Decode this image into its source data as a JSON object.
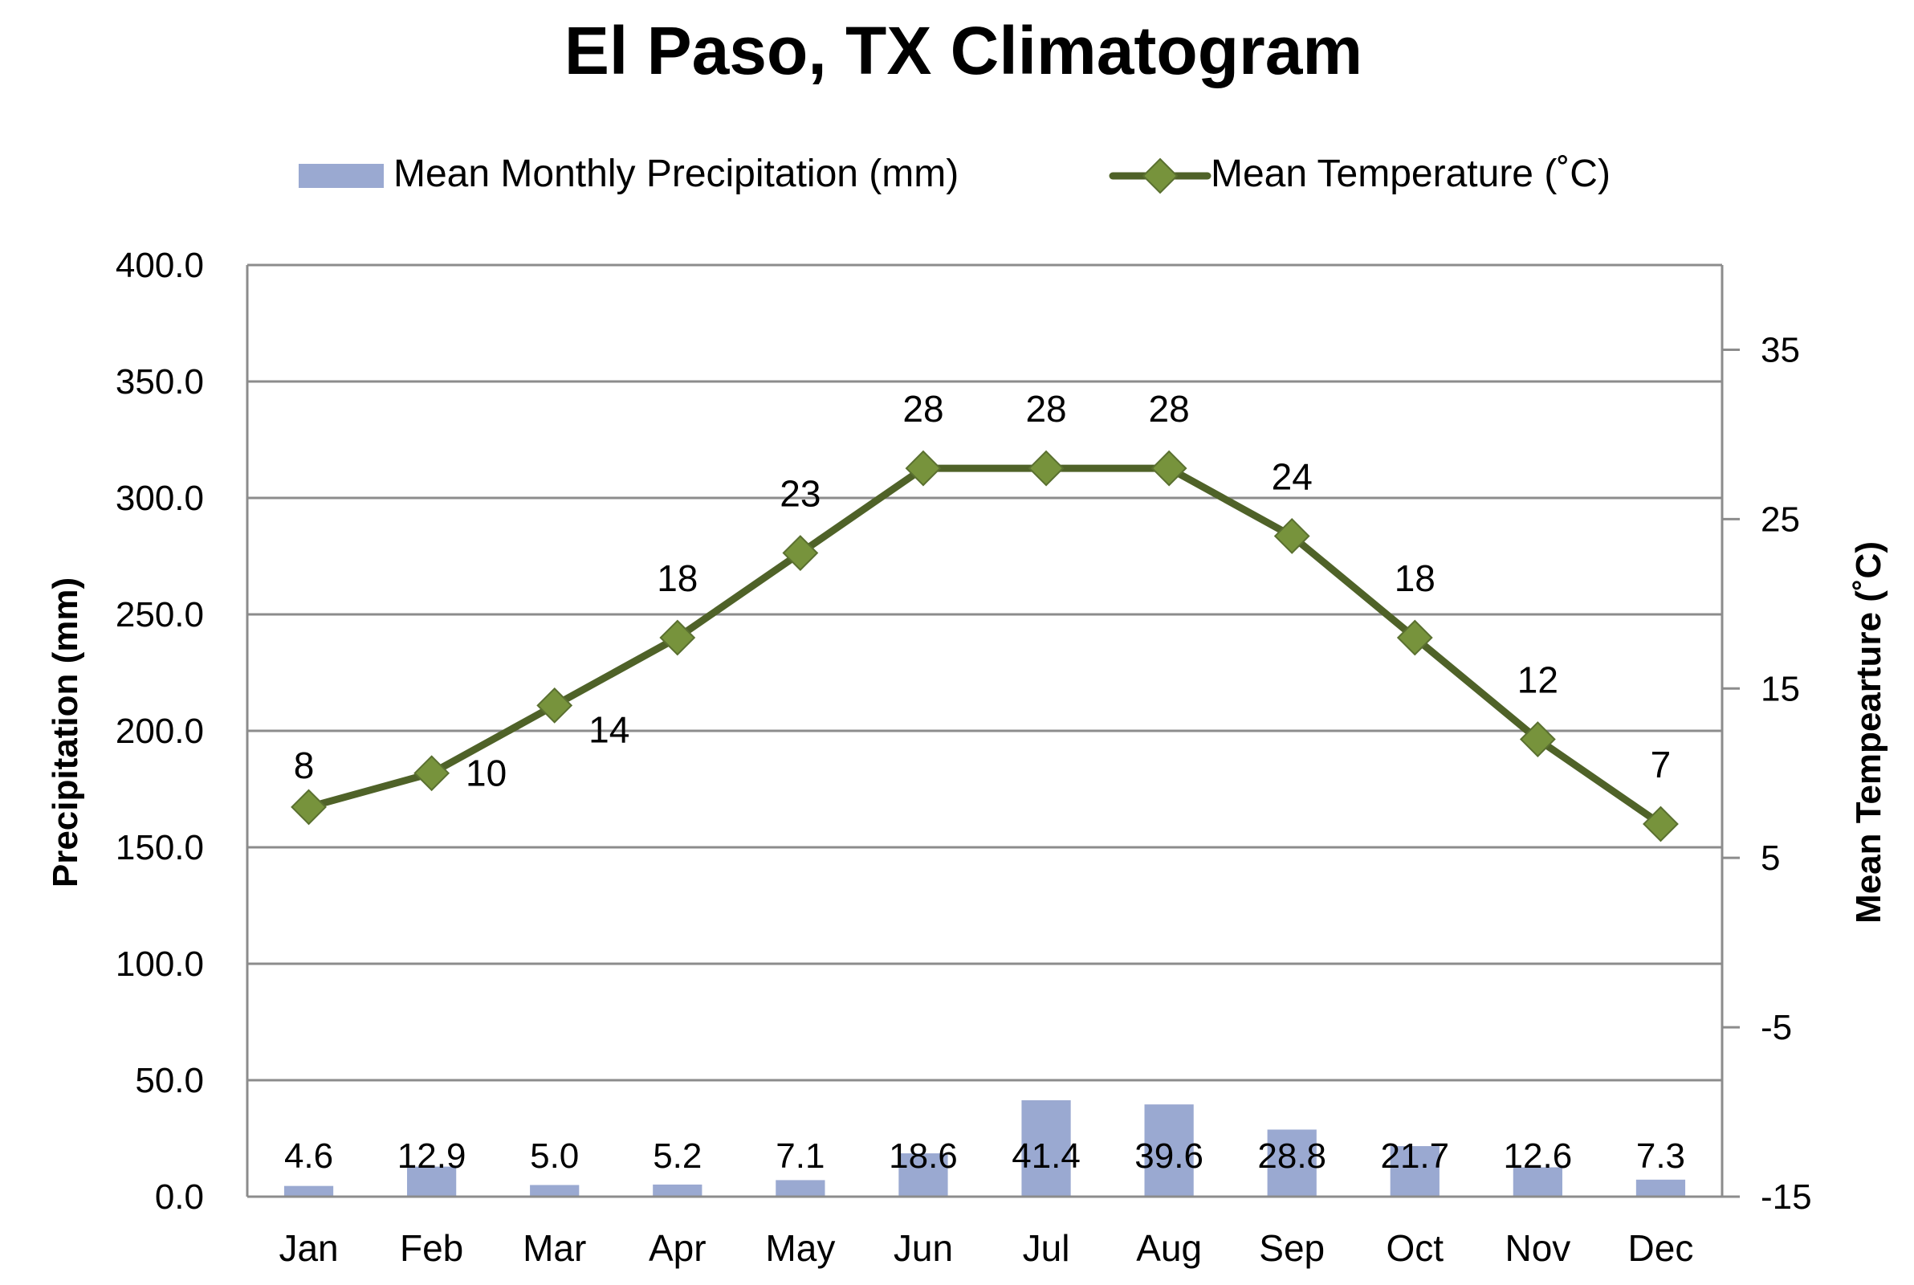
{
  "chart_data": {
    "type": "bar+line",
    "title": "El Paso, TX Climatogram",
    "categories": [
      "Jan",
      "Feb",
      "Mar",
      "Apr",
      "May",
      "Jun",
      "Jul",
      "Aug",
      "Sep",
      "Oct",
      "Nov",
      "Dec"
    ],
    "series": [
      {
        "name": "Mean Monthly Precipitation (mm)",
        "type": "bar",
        "axis": "left",
        "values": [
          4.6,
          12.9,
          5.0,
          5.2,
          7.1,
          18.6,
          41.4,
          39.6,
          28.8,
          21.7,
          12.6,
          7.3
        ],
        "labels": [
          "4.6",
          "12.9",
          "5.0",
          "5.2",
          "7.1",
          "18.6",
          "41.4",
          "39.6",
          "28.8",
          "21.7",
          "12.6",
          "7.3"
        ],
        "color": "#9aa9d1"
      },
      {
        "name": "Mean Temperature (˚C)",
        "type": "line",
        "axis": "right",
        "values": [
          8,
          10,
          14,
          18,
          23,
          28,
          28,
          28,
          24,
          18,
          12,
          7
        ],
        "labels": [
          "8",
          "10",
          "14",
          "18",
          "23",
          "28",
          "28",
          "28",
          "24",
          "18",
          "12",
          "7"
        ],
        "color": "#4f6228",
        "marker_color": "#77933c"
      }
    ],
    "ylabel": "Precipitation (mm)",
    "ylabel_right": "Mean Tempearture (˚C)",
    "ylim": [
      0,
      400
    ],
    "y_ticks": [
      "0.0",
      "50.0",
      "100.0",
      "150.0",
      "200.0",
      "250.0",
      "300.0",
      "350.0",
      "400.0"
    ],
    "y_tick_values": [
      0,
      50,
      100,
      150,
      200,
      250,
      300,
      350,
      400
    ],
    "ylim_right": [
      -15,
      40
    ],
    "y_right_ticks": [
      "-15",
      "-5",
      "5",
      "15",
      "25",
      "35"
    ],
    "y_right_tick_values": [
      -15,
      -5,
      5,
      15,
      25,
      35
    ],
    "grid": true,
    "legend_position": "top-center"
  }
}
